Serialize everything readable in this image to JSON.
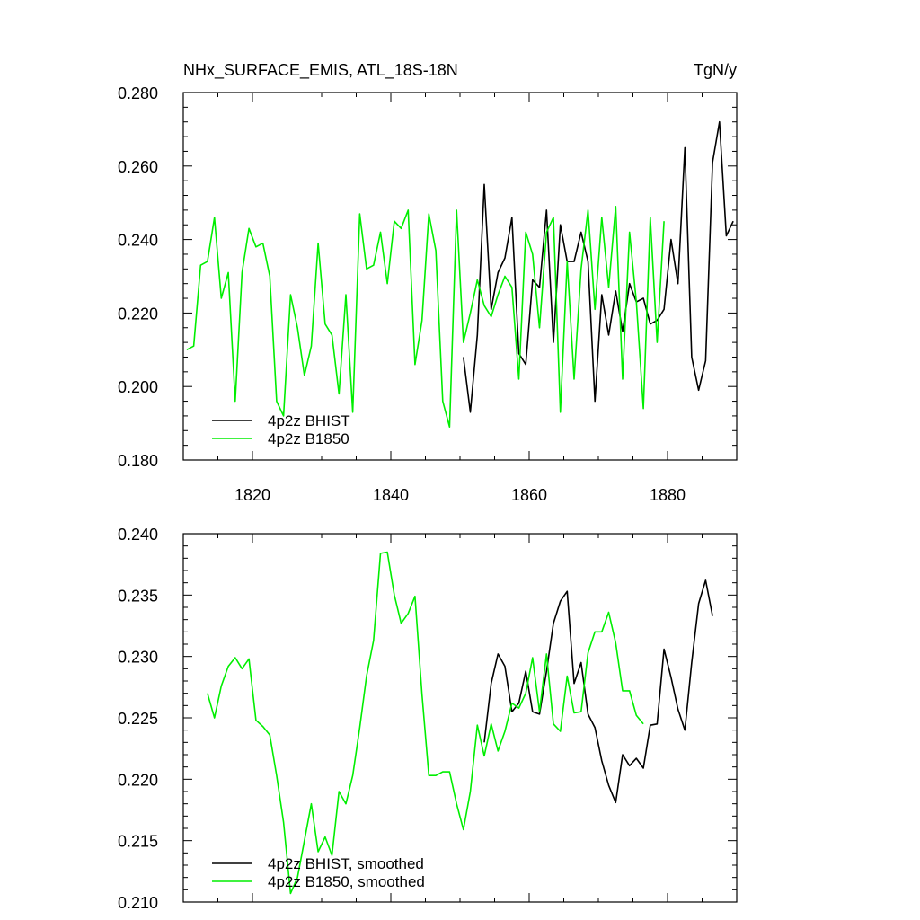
{
  "chart_data": [
    {
      "type": "line",
      "title": "NHx_SURFACE_EMIS, ATL_18S-18N",
      "units": "TgN/y",
      "xlim": [
        1810,
        1890
      ],
      "ylim": [
        0.18,
        0.28
      ],
      "x_ticks": [
        "1820",
        "1840",
        "1860",
        "1880"
      ],
      "y_ticks": [
        "0.180",
        "0.200",
        "0.220",
        "0.240",
        "0.260",
        "0.280"
      ],
      "grid": false,
      "legend_position": "bottom-left",
      "series": [
        {
          "name": "4p2z BHIST",
          "color": "#000000",
          "x": [
            1850.5,
            1851.5,
            1852.5,
            1853.5,
            1854.5,
            1855.5,
            1856.5,
            1857.5,
            1858.5,
            1859.5,
            1860.5,
            1861.5,
            1862.5,
            1863.5,
            1864.5,
            1865.5,
            1866.5,
            1867.5,
            1868.5,
            1869.5,
            1870.5,
            1871.5,
            1872.5,
            1873.5,
            1874.5,
            1875.5,
            1876.5,
            1877.5,
            1878.5,
            1879.5,
            1880.5,
            1881.5,
            1882.5,
            1883.5,
            1884.5,
            1885.5,
            1886.5,
            1887.5,
            1888.5,
            1889.5
          ],
          "values": [
            0.208,
            0.193,
            0.214,
            0.255,
            0.221,
            0.231,
            0.235,
            0.246,
            0.209,
            0.206,
            0.229,
            0.227,
            0.248,
            0.212,
            0.244,
            0.234,
            0.234,
            0.242,
            0.234,
            0.196,
            0.225,
            0.214,
            0.226,
            0.215,
            0.228,
            0.223,
            0.224,
            0.217,
            0.218,
            0.221,
            0.24,
            0.228,
            0.265,
            0.208,
            0.199,
            0.207,
            0.261,
            0.272,
            0.241,
            0.245
          ]
        },
        {
          "name": "4p2z B1850",
          "color": "#00ee00",
          "x": [
            1810.5,
            1811.5,
            1812.5,
            1813.5,
            1814.5,
            1815.5,
            1816.5,
            1817.5,
            1818.5,
            1819.5,
            1820.5,
            1821.5,
            1822.5,
            1823.5,
            1824.5,
            1825.5,
            1826.5,
            1827.5,
            1828.5,
            1829.5,
            1830.5,
            1831.5,
            1832.5,
            1833.5,
            1834.5,
            1835.5,
            1836.5,
            1837.5,
            1838.5,
            1839.5,
            1840.5,
            1841.5,
            1842.5,
            1843.5,
            1844.5,
            1845.5,
            1846.5,
            1847.5,
            1848.5,
            1849.5,
            1850.5,
            1851.5,
            1852.5,
            1853.5,
            1854.5,
            1855.5,
            1856.5,
            1857.5,
            1858.5,
            1859.5,
            1860.5,
            1861.5,
            1862.5,
            1863.5,
            1864.5,
            1865.5,
            1866.5,
            1867.5,
            1868.5,
            1869.5,
            1870.5,
            1871.5,
            1872.5,
            1873.5,
            1874.5,
            1875.5,
            1876.5,
            1877.5,
            1878.5,
            1879.5
          ],
          "values": [
            0.21,
            0.211,
            0.233,
            0.234,
            0.246,
            0.224,
            0.231,
            0.196,
            0.231,
            0.243,
            0.238,
            0.239,
            0.23,
            0.196,
            0.192,
            0.225,
            0.216,
            0.203,
            0.211,
            0.239,
            0.217,
            0.214,
            0.198,
            0.225,
            0.193,
            0.247,
            0.232,
            0.233,
            0.242,
            0.228,
            0.245,
            0.243,
            0.248,
            0.206,
            0.218,
            0.247,
            0.237,
            0.196,
            0.189,
            0.248,
            0.212,
            0.22,
            0.229,
            0.222,
            0.219,
            0.225,
            0.23,
            0.227,
            0.202,
            0.242,
            0.236,
            0.216,
            0.242,
            0.246,
            0.193,
            0.234,
            0.202,
            0.232,
            0.248,
            0.221,
            0.246,
            0.227,
            0.249,
            0.202,
            0.242,
            0.223,
            0.194,
            0.246,
            0.212,
            0.245
          ]
        }
      ]
    },
    {
      "type": "line",
      "xlim": [
        1810,
        1890
      ],
      "ylim": [
        0.21,
        0.24
      ],
      "y_ticks": [
        "0.210",
        "0.215",
        "0.220",
        "0.225",
        "0.230",
        "0.235",
        "0.240"
      ],
      "grid": false,
      "legend_position": "bottom-left",
      "series": [
        {
          "name": "4p2z BHIST, smoothed",
          "color": "#000000",
          "x": [
            1853.5,
            1854.5,
            1855.5,
            1856.5,
            1857.5,
            1858.5,
            1859.5,
            1860.5,
            1861.5,
            1862.5,
            1863.5,
            1864.5,
            1865.5,
            1866.5,
            1867.5,
            1868.5,
            1869.5,
            1870.5,
            1871.5,
            1872.5,
            1873.5,
            1874.5,
            1875.5,
            1876.5,
            1877.5,
            1878.5,
            1879.5,
            1880.5,
            1881.5,
            1882.5,
            1883.5,
            1884.5,
            1885.5,
            1886.5
          ],
          "values": [
            0.223,
            0.2278,
            0.2302,
            0.2292,
            0.2255,
            0.2262,
            0.2288,
            0.2255,
            0.2253,
            0.2288,
            0.2327,
            0.2345,
            0.2353,
            0.2278,
            0.2295,
            0.2253,
            0.2242,
            0.2215,
            0.2195,
            0.2181,
            0.222,
            0.2211,
            0.2217,
            0.2209,
            0.2244,
            0.2245,
            0.2306,
            0.2283,
            0.2257,
            0.224,
            0.2295,
            0.2343,
            0.2362,
            0.2333
          ]
        },
        {
          "name": "4p2z B1850, smoothed",
          "color": "#00ee00",
          "x": [
            1813.5,
            1814.5,
            1815.5,
            1816.5,
            1817.5,
            1818.5,
            1819.5,
            1820.5,
            1821.5,
            1822.5,
            1823.5,
            1824.5,
            1825.5,
            1826.5,
            1827.5,
            1828.5,
            1829.5,
            1830.5,
            1831.5,
            1832.5,
            1833.5,
            1834.5,
            1835.5,
            1836.5,
            1837.5,
            1838.5,
            1839.5,
            1840.5,
            1841.5,
            1842.5,
            1843.5,
            1844.5,
            1845.5,
            1846.5,
            1847.5,
            1848.5,
            1849.5,
            1850.5,
            1851.5,
            1852.5,
            1853.5,
            1854.5,
            1855.5,
            1856.5,
            1857.5,
            1858.5,
            1859.5,
            1860.5,
            1861.5,
            1862.5,
            1863.5,
            1864.5,
            1865.5,
            1866.5,
            1867.5,
            1868.5,
            1869.5,
            1870.5,
            1871.5,
            1872.5,
            1873.5,
            1874.5,
            1875.5,
            1876.5
          ],
          "values": [
            0.227,
            0.225,
            0.2276,
            0.2292,
            0.2299,
            0.229,
            0.2298,
            0.2248,
            0.2243,
            0.2236,
            0.2203,
            0.2165,
            0.2107,
            0.212,
            0.215,
            0.218,
            0.2141,
            0.2153,
            0.2138,
            0.219,
            0.218,
            0.2203,
            0.2242,
            0.2284,
            0.2313,
            0.2384,
            0.2385,
            0.235,
            0.2327,
            0.2335,
            0.2349,
            0.2269,
            0.2203,
            0.2203,
            0.2206,
            0.2206,
            0.218,
            0.2159,
            0.219,
            0.2244,
            0.2219,
            0.2245,
            0.2223,
            0.2239,
            0.2262,
            0.2258,
            0.227,
            0.2299,
            0.2255,
            0.2302,
            0.2245,
            0.2239,
            0.2284,
            0.2254,
            0.2255,
            0.2303,
            0.232,
            0.232,
            0.2336,
            0.2311,
            0.2272,
            0.2272,
            0.2252,
            0.2245
          ]
        }
      ]
    }
  ]
}
